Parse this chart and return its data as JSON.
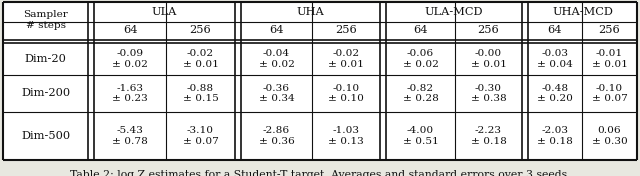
{
  "groups": [
    "ULA",
    "UHA",
    "ULA-MCD",
    "UHA-MCD"
  ],
  "step_labels": [
    "64",
    "256",
    "64",
    "256",
    "64",
    "256",
    "64",
    "256"
  ],
  "rows": [
    {
      "label": "Dim-20",
      "values": [
        "-0.09\n± 0.02",
        "-0.02\n± 0.01",
        "-0.04\n± 0.02",
        "-0.02\n± 0.01",
        "-0.06\n± 0.02",
        "-0.00\n± 0.01",
        "-0.03\n± 0.04",
        "-0.01\n± 0.01"
      ]
    },
    {
      "label": "Dim-200",
      "values": [
        "-1.63\n± 0.23",
        "-0.88\n± 0.15",
        "-0.36\n± 0.34",
        "-0.10\n± 0.10",
        "-0.82\n± 0.28",
        "-0.30\n± 0.38",
        "-0.48\n± 0.20",
        "-0.10\n± 0.07"
      ]
    },
    {
      "label": "Dim-500",
      "values": [
        "-5.43\n± 0.78",
        "-3.10\n± 0.07",
        "-2.86\n± 0.36",
        "-1.03\n± 0.13",
        "-4.00\n± 0.51",
        "-2.23\n± 0.18",
        "-2.03\n± 0.18",
        "0.06\n± 0.30"
      ]
    }
  ],
  "caption": "Table 2: log Z estimates for a Student-T target. Averages and standard errors over 3 seeds.",
  "bg_color": "#e8e8e0",
  "table_bg": "#ffffff",
  "text_color": "#111111",
  "line_color": "#111111",
  "font_size": 8.2,
  "caption_font_size": 7.8,
  "header_label": "Sampler\n# steps"
}
